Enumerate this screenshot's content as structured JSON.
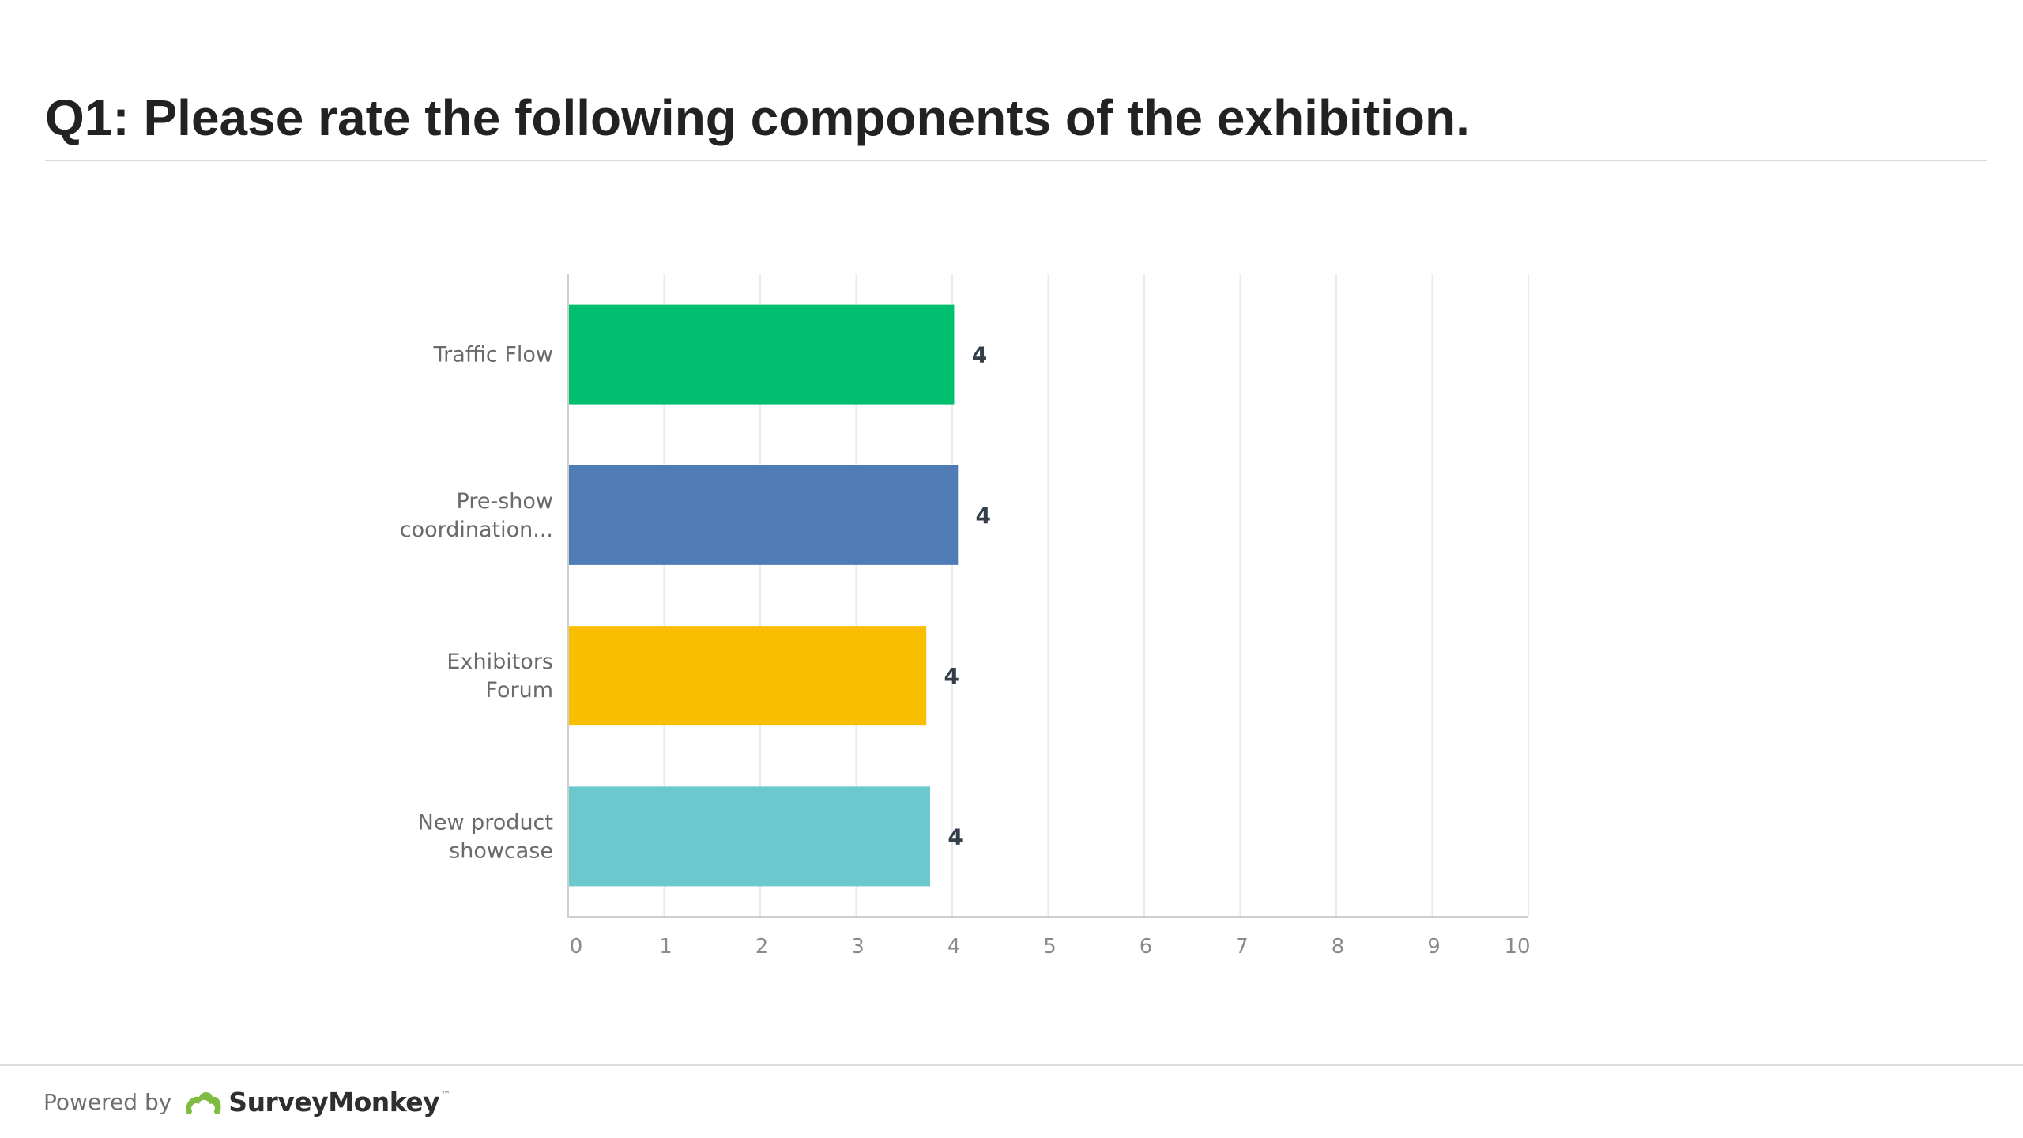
{
  "header": {
    "question_title": "Q1: Please rate the following components of the exhibition."
  },
  "chart_data": {
    "type": "bar",
    "orientation": "horizontal",
    "title": "",
    "xlabel": "",
    "ylabel": "",
    "xlim": [
      0,
      10
    ],
    "x_ticks": [
      "0",
      "1",
      "2",
      "3",
      "4",
      "5",
      "6",
      "7",
      "8",
      "9",
      "10"
    ],
    "grid": "vertical",
    "categories": [
      [
        "Traffic Flow"
      ],
      [
        "Pre-show",
        "coordination..."
      ],
      [
        "Exhibitors",
        "Forum"
      ],
      [
        "New product",
        "showcase"
      ]
    ],
    "values": [
      4.02,
      4.06,
      3.73,
      3.77
    ],
    "data_labels": [
      "4",
      "4",
      "4",
      "4"
    ],
    "colors": [
      "#00bf6f",
      "#507cb6",
      "#f9be00",
      "#6bc8cd"
    ]
  },
  "footer": {
    "powered_by": "Powered by",
    "brand_name": "SurveyMonkey",
    "brand_mark": "™",
    "brand_logo_icon": "surveymonkey-logo-icon",
    "brand_color": "#7fbc41"
  }
}
